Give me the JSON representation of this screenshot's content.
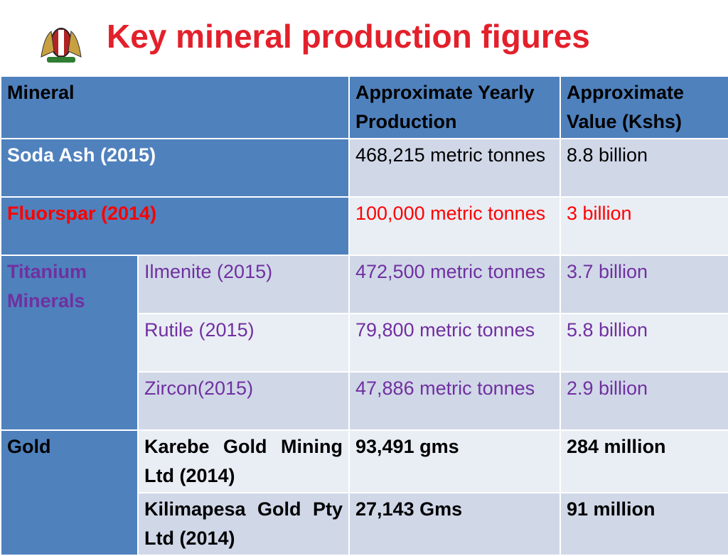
{
  "title": "Key mineral production figures",
  "table": {
    "header": [
      "Mineral",
      "Approximate Yearly Production",
      "Approximate Value  (Kshs)"
    ],
    "rows": [
      [
        "Soda Ash (2015)",
        "468,215 metric tonnes",
        "8.8 billion"
      ],
      [
        "Fluorspar (2014)",
        "100,000 metric tonnes",
        "3 billion"
      ],
      [
        "Titanium Minerals",
        "Ilmenite (2015)",
        "472,500 metric tonnes",
        "3.7 billion"
      ],
      [
        "Rutile (2015)",
        "79,800 metric tonnes",
        "5.8 billion"
      ],
      [
        "Zircon(2015)",
        "47,886 metric tonnes",
        "2.9 billion"
      ],
      [
        "Gold",
        "Karebe Gold Mining  Ltd (2014)",
        "93,491 gms",
        "284 million"
      ],
      [
        "Kilimapesa Gold Pty Ltd (2014)",
        "27,143 Gms",
        "91 million"
      ]
    ]
  }
}
